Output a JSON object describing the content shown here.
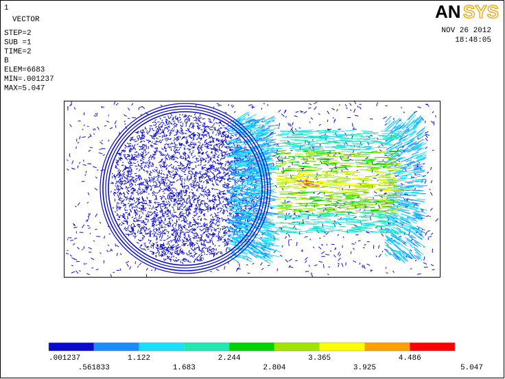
{
  "header": {
    "window_number": "1",
    "plot_type": "VECTOR",
    "info": [
      "STEP=2",
      "SUB =1",
      "TIME=2",
      "B",
      "ELEM=6683",
      "MIN=.001237",
      "MAX=5.047"
    ],
    "logo": {
      "left": "AN",
      "right": "SYS"
    },
    "date": "NOV 26 2012",
    "time": "18:48:05"
  },
  "legend": {
    "colors": [
      "#0a0acf",
      "#1a8cff",
      "#19e0ff",
      "#20e8b0",
      "#00d200",
      "#a0e400",
      "#ffff00",
      "#ffa000",
      "#ff0000"
    ],
    "labels": [
      ".001237",
      ".561833",
      "1.122",
      "1.683",
      "2.244",
      "2.804",
      "3.365",
      "3.925",
      "4.486",
      "5.047"
    ]
  }
}
